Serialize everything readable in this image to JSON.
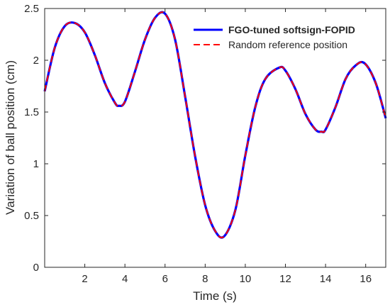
{
  "chart_data": {
    "type": "line",
    "title": "",
    "xlabel": "Time (s)",
    "ylabel": "Variation of ball position (cm)",
    "xlim": [
      0,
      17
    ],
    "ylim": [
      0,
      2.5
    ],
    "xticks": [
      2,
      4,
      6,
      8,
      10,
      12,
      14,
      16
    ],
    "yticks": [
      0,
      0.5,
      1,
      1.5,
      2,
      2.5
    ],
    "x_tick_labels": [
      "2",
      "4",
      "6",
      "8",
      "10",
      "12",
      "14",
      "16"
    ],
    "y_tick_labels": [
      "0",
      "0.5",
      "1",
      "1.5",
      "2",
      "2.5"
    ],
    "grid": false,
    "legend_position": "top-right",
    "series": [
      {
        "name": "FGO-tuned softsign-FOPID",
        "color": "#0000ff",
        "style": "solid",
        "x": [
          0,
          0.5,
          1,
          1.5,
          2,
          2.5,
          3,
          3.5,
          3.7,
          4,
          4.5,
          5,
          5.5,
          6,
          6.5,
          7,
          7.5,
          8,
          8.5,
          8.95,
          9.5,
          10,
          10.5,
          11,
          11.7,
          12,
          12.5,
          13,
          13.5,
          13.8,
          14,
          14.5,
          15,
          15.5,
          15.95,
          16.5,
          17
        ],
        "y": [
          1.7,
          2.12,
          2.33,
          2.36,
          2.27,
          2.05,
          1.78,
          1.59,
          1.56,
          1.6,
          1.89,
          2.2,
          2.41,
          2.45,
          2.2,
          1.65,
          1.07,
          0.6,
          0.35,
          0.3,
          0.55,
          1.08,
          1.55,
          1.82,
          1.93,
          1.9,
          1.72,
          1.48,
          1.33,
          1.31,
          1.33,
          1.55,
          1.82,
          1.95,
          1.97,
          1.78,
          1.44
        ]
      },
      {
        "name": "Random reference position",
        "color": "#ff0000",
        "style": "dashed",
        "x": [
          0,
          0.5,
          1,
          1.5,
          2,
          2.5,
          3,
          3.5,
          3.7,
          4,
          4.5,
          5,
          5.5,
          6,
          6.5,
          7,
          7.5,
          8,
          8.5,
          8.95,
          9.5,
          10,
          10.5,
          11,
          11.7,
          12,
          12.5,
          13,
          13.5,
          13.8,
          14,
          14.5,
          15,
          15.5,
          15.95,
          16.5,
          17
        ],
        "y": [
          1.7,
          2.12,
          2.33,
          2.36,
          2.27,
          2.05,
          1.78,
          1.59,
          1.56,
          1.6,
          1.89,
          2.2,
          2.41,
          2.45,
          2.2,
          1.65,
          1.07,
          0.6,
          0.35,
          0.3,
          0.55,
          1.08,
          1.55,
          1.82,
          1.93,
          1.9,
          1.72,
          1.48,
          1.33,
          1.31,
          1.33,
          1.55,
          1.82,
          1.95,
          1.97,
          1.78,
          1.44
        ]
      }
    ]
  }
}
